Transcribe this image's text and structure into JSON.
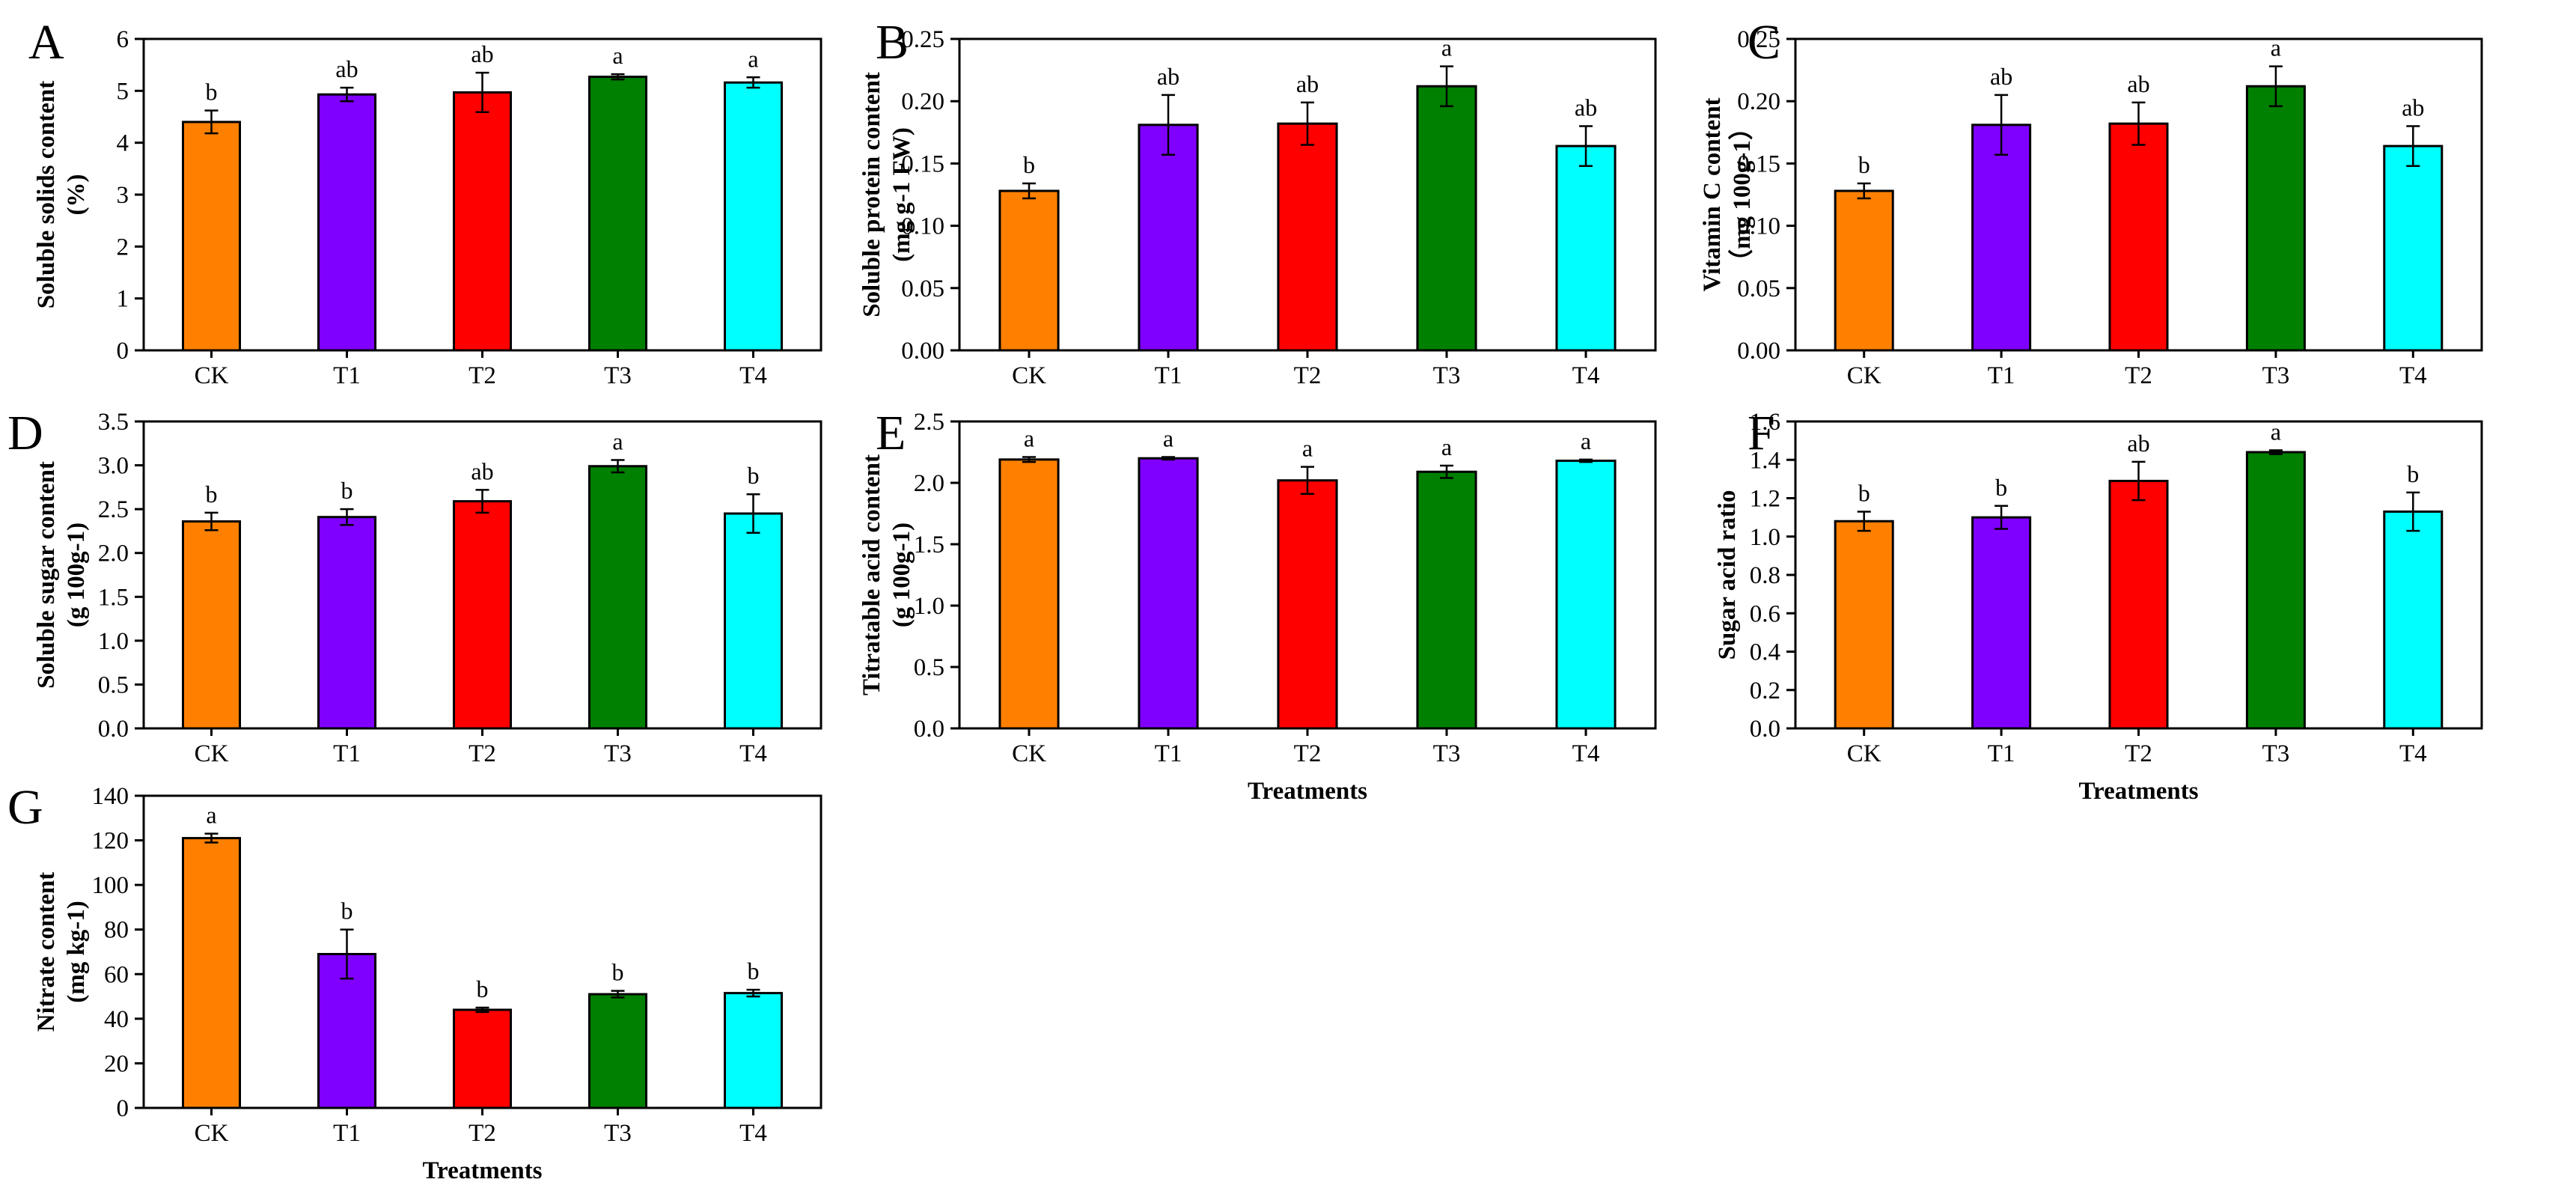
{
  "figure": {
    "x_axis_title": "Treatments",
    "bar_colors": [
      "#FF8000",
      "#8000FF",
      "#FF0000",
      "#008000",
      "#00FFFF"
    ]
  },
  "chart_data": [
    {
      "panel": "A",
      "type": "bar",
      "categories": [
        "CK",
        "T1",
        "T2",
        "T3",
        "T4"
      ],
      "values": [
        4.4,
        4.93,
        4.97,
        5.27,
        5.16
      ],
      "errors": [
        0.22,
        0.13,
        0.38,
        0.05,
        0.1
      ],
      "significance": [
        "b",
        "ab",
        "ab",
        "a",
        "a"
      ],
      "ylabel_lines": [
        "Soluble solids content",
        "(%)"
      ],
      "ylim": [
        0,
        6
      ],
      "yticks": [
        "0",
        "1",
        "2",
        "3",
        "4",
        "5",
        "6"
      ],
      "xlabel": ""
    },
    {
      "panel": "B",
      "type": "bar",
      "categories": [
        "CK",
        "T1",
        "T2",
        "T3",
        "T4"
      ],
      "values": [
        0.128,
        0.181,
        0.182,
        0.212,
        0.164
      ],
      "errors": [
        0.006,
        0.024,
        0.017,
        0.016,
        0.016
      ],
      "significance": [
        "b",
        "ab",
        "ab",
        "a",
        "ab"
      ],
      "ylabel_lines": [
        "Soluble protein content",
        "(mg g-1 FW)"
      ],
      "ylim": [
        0,
        0.25
      ],
      "yticks": [
        "0.00",
        "0.05",
        "0.10",
        "0.15",
        "0.20",
        "0.25"
      ],
      "xlabel": ""
    },
    {
      "panel": "C",
      "type": "bar",
      "categories": [
        "CK",
        "T1",
        "T2",
        "T3",
        "T4"
      ],
      "values": [
        0.128,
        0.181,
        0.182,
        0.212,
        0.164
      ],
      "errors": [
        0.006,
        0.024,
        0.017,
        0.016,
        0.016
      ],
      "significance": [
        "b",
        "ab",
        "ab",
        "a",
        "ab"
      ],
      "ylabel_lines": [
        "Vitamin C content",
        "（mg 100g-1）"
      ],
      "ylim": [
        0,
        0.25
      ],
      "yticks": [
        "0.00",
        "0.05",
        "0.10",
        "0.15",
        "0.20",
        "0.25"
      ],
      "xlabel": ""
    },
    {
      "panel": "D",
      "type": "bar",
      "categories": [
        "CK",
        "T1",
        "T2",
        "T3",
        "T4"
      ],
      "values": [
        2.36,
        2.41,
        2.59,
        2.99,
        2.45
      ],
      "errors": [
        0.1,
        0.09,
        0.13,
        0.07,
        0.22
      ],
      "significance": [
        "b",
        "b",
        "ab",
        "a",
        "b"
      ],
      "ylabel_lines": [
        "Soluble sugar content",
        "(g 100g-1)"
      ],
      "ylim": [
        0,
        3.5
      ],
      "yticks": [
        "0.0",
        "0.5",
        "1.0",
        "1.5",
        "2.0",
        "2.5",
        "3.0",
        "3.5"
      ],
      "xlabel": ""
    },
    {
      "panel": "E",
      "type": "bar",
      "categories": [
        "CK",
        "T1",
        "T2",
        "T3",
        "T4"
      ],
      "values": [
        2.19,
        2.2,
        2.02,
        2.09,
        2.18
      ],
      "errors": [
        0.02,
        0.01,
        0.11,
        0.05,
        0.01
      ],
      "significance": [
        "a",
        "a",
        "a",
        "a",
        "a"
      ],
      "ylabel_lines": [
        "Titratable acid content",
        "(g 100g-1)"
      ],
      "ylim": [
        0,
        2.5
      ],
      "yticks": [
        "0.0",
        "0.5",
        "1.0",
        "1.5",
        "2.0",
        "2.5"
      ],
      "xlabel": "Treatments"
    },
    {
      "panel": "F",
      "type": "bar",
      "categories": [
        "CK",
        "T1",
        "T2",
        "T3",
        "T4"
      ],
      "values": [
        1.08,
        1.1,
        1.29,
        1.44,
        1.13
      ],
      "errors": [
        0.05,
        0.06,
        0.1,
        0.01,
        0.1
      ],
      "significance": [
        "b",
        "b",
        "ab",
        "a",
        "b"
      ],
      "ylabel_lines": [
        "Sugar acid ratio"
      ],
      "ylim": [
        0,
        1.6
      ],
      "yticks": [
        "0.0",
        "0.2",
        "0.4",
        "0.6",
        "0.8",
        "1.0",
        "1.2",
        "1.4",
        "1.6"
      ],
      "xlabel": "Treatments"
    },
    {
      "panel": "G",
      "type": "bar",
      "categories": [
        "CK",
        "T1",
        "T2",
        "T3",
        "T4"
      ],
      "values": [
        121,
        69,
        44,
        51,
        51.5
      ],
      "errors": [
        2,
        11,
        1,
        1.5,
        1.5
      ],
      "significance": [
        "a",
        "b",
        "b",
        "b",
        "b"
      ],
      "ylabel_lines": [
        "Nitrate content",
        "(mg kg-1)"
      ],
      "ylim": [
        0,
        140
      ],
      "yticks": [
        "0",
        "20",
        "40",
        "60",
        "80",
        "100",
        "120",
        "140"
      ],
      "xlabel": "Treatments"
    }
  ]
}
